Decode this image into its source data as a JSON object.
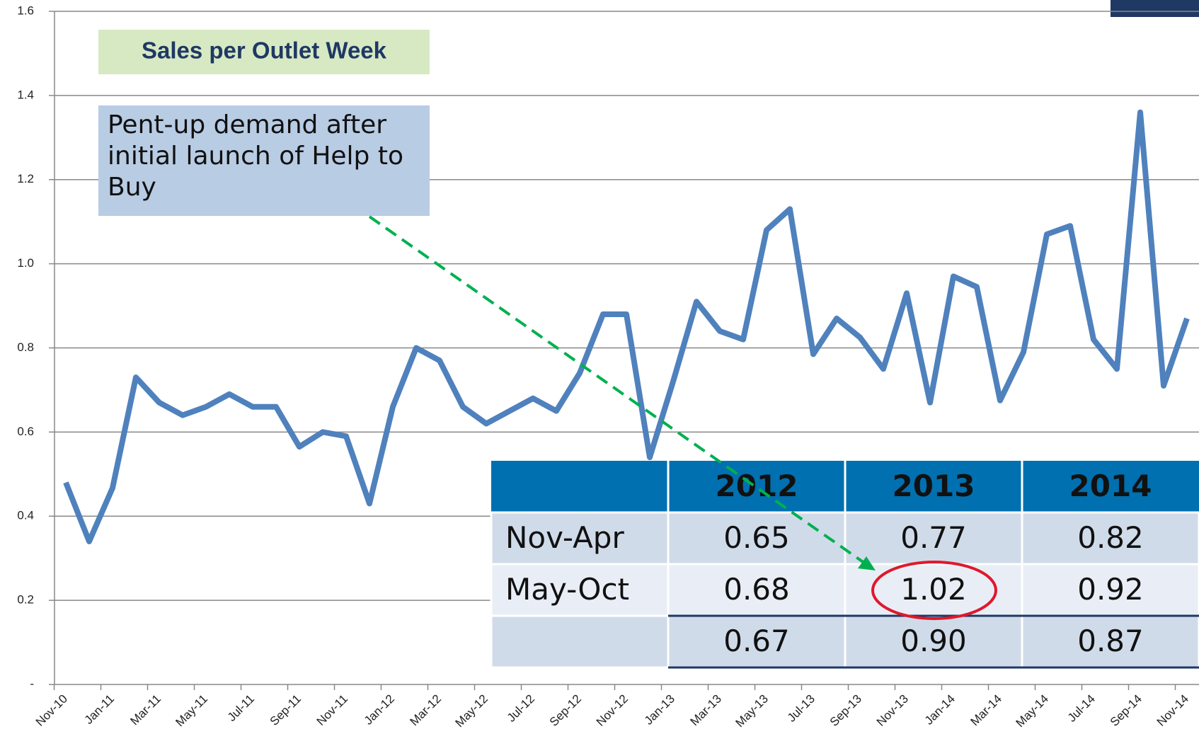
{
  "chart_data": {
    "type": "line",
    "categories": [
      "Nov-10",
      null,
      "Jan-11",
      null,
      "Mar-11",
      null,
      "May-11",
      null,
      "Jul-11",
      null,
      "Sep-11",
      null,
      "Nov-11",
      null,
      "Jan-12",
      null,
      "Mar-12",
      null,
      "May-12",
      null,
      "Jul-12",
      null,
      "Sep-12",
      null,
      "Nov-12",
      null,
      "Jan-13",
      null,
      "Mar-13",
      null,
      "May-13",
      null,
      "Jul-13",
      null,
      "Sep-13",
      null,
      "Nov-13",
      null,
      "Jan-14",
      null,
      "Mar-14",
      null,
      "May-14",
      null,
      "Jul-14",
      null,
      "Sep-14",
      null,
      "Nov-14"
    ],
    "series": [
      {
        "color": "#4f81bd",
        "values": [
          0.48,
          0.34,
          0.467,
          0.73,
          0.67,
          0.64,
          0.66,
          0.69,
          0.66,
          0.66,
          0.565,
          0.6,
          0.59,
          0.43,
          0.66,
          0.8,
          0.77,
          0.66,
          0.62,
          0.65,
          0.68,
          0.65,
          0.74,
          0.88,
          0.88,
          0.54,
          0.72,
          0.91,
          0.84,
          0.82,
          1.08,
          1.13,
          0.785,
          0.87,
          0.825,
          0.75,
          0.93,
          0.67,
          0.97,
          0.945,
          0.675,
          0.79,
          1.07,
          1.09,
          0.82,
          0.75,
          1.36,
          0.71,
          0.87
        ]
      }
    ],
    "ylim": [
      0,
      1.6
    ],
    "yticks": [
      {
        "value": 0,
        "label": "-"
      },
      0.2,
      0.4,
      0.6,
      0.8,
      {
        "value": 1,
        "label": "1.0"
      },
      1.2,
      1.4,
      1.6
    ],
    "grid": true,
    "annotations": [
      "Sales per Outlet Week",
      "Pent-up demand after initial launch of Help to Buy"
    ]
  },
  "table": {
    "header": [
      "2012",
      "2013",
      "2014"
    ],
    "rows": [
      {
        "label": "Nov-Apr",
        "values": [
          "0.65",
          "0.77",
          "0.82"
        ]
      },
      {
        "label": "May-Oct",
        "values": [
          "0.68",
          "1.02",
          "0.92"
        ]
      },
      {
        "values": [
          "0.67",
          "0.90",
          "0.87"
        ]
      }
    ]
  }
}
